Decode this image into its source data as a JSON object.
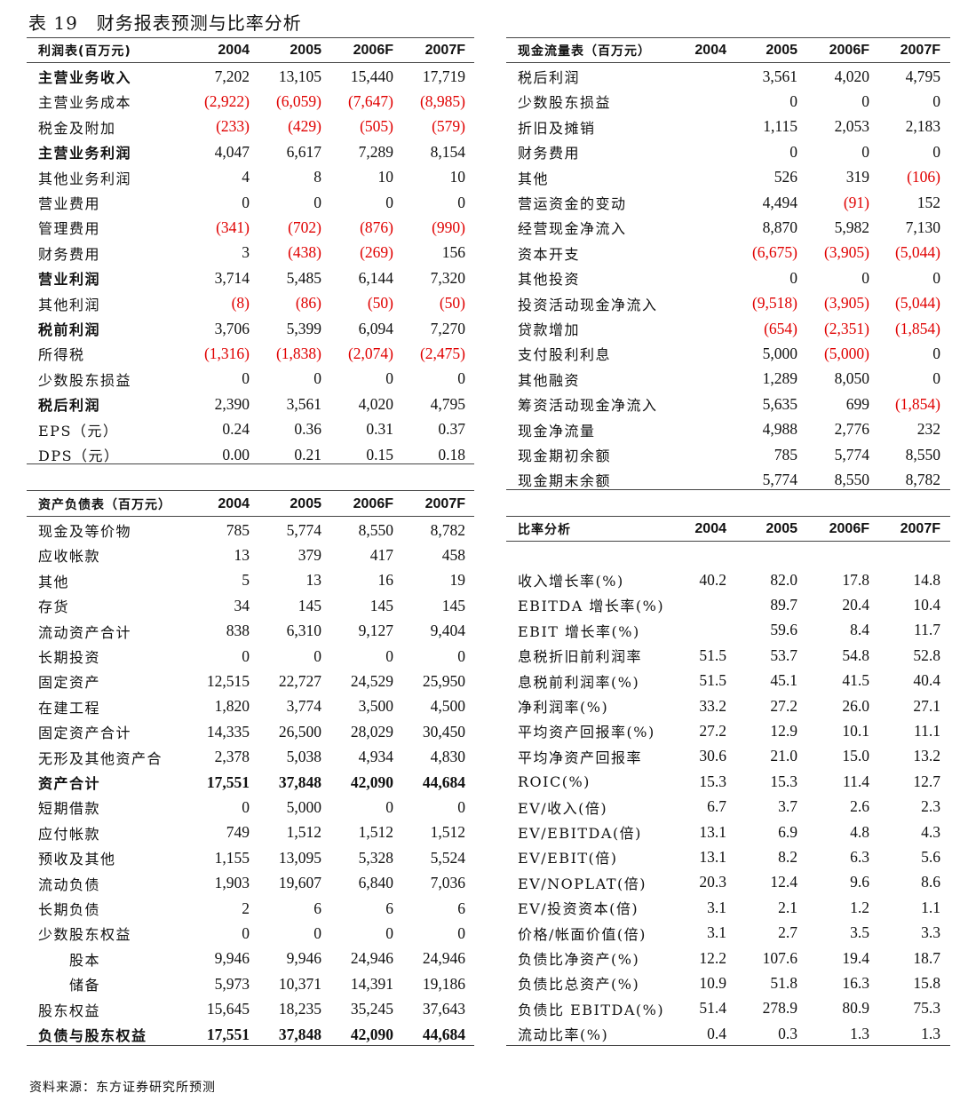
{
  "title": "表 19　财务报表预测与比率分析",
  "source": "资料来源：东方证券研究所预测",
  "colors": {
    "negative": "#e00000",
    "text": "#111111",
    "rule": "#444444"
  },
  "tables": {
    "income": {
      "header": [
        "利润表(百万元)",
        "2004",
        "2005",
        "2006F",
        "2007F"
      ],
      "rows": [
        {
          "label": "主营业务收入",
          "bold": true,
          "values": [
            "7,202",
            "13,105",
            "15,440",
            "17,719"
          ]
        },
        {
          "label": "主营业务成本",
          "values": [
            "(2,922)",
            "(6,059)",
            "(7,647)",
            "(8,985)"
          ]
        },
        {
          "label": "税金及附加",
          "values": [
            "(233)",
            "(429)",
            "(505)",
            "(579)"
          ]
        },
        {
          "label": "主营业务利润",
          "bold": true,
          "values": [
            "4,047",
            "6,617",
            "7,289",
            "8,154"
          ]
        },
        {
          "label": "其他业务利润",
          "values": [
            "4",
            "8",
            "10",
            "10"
          ]
        },
        {
          "label": "营业费用",
          "values": [
            "0",
            "0",
            "0",
            "0"
          ]
        },
        {
          "label": "管理费用",
          "values": [
            "(341)",
            "(702)",
            "(876)",
            "(990)"
          ]
        },
        {
          "label": "财务费用",
          "values": [
            "3",
            "(438)",
            "(269)",
            "156"
          ]
        },
        {
          "label": "营业利润",
          "bold": true,
          "values": [
            "3,714",
            "5,485",
            "6,144",
            "7,320"
          ]
        },
        {
          "label": "其他利润",
          "values": [
            "(8)",
            "(86)",
            "(50)",
            "(50)"
          ]
        },
        {
          "label": "税前利润",
          "bold": true,
          "values": [
            "3,706",
            "5,399",
            "6,094",
            "7,270"
          ]
        },
        {
          "label": "所得税",
          "values": [
            "(1,316)",
            "(1,838)",
            "(2,074)",
            "(2,475)"
          ]
        },
        {
          "label": "少数股东损益",
          "values": [
            "0",
            "0",
            "0",
            "0"
          ]
        },
        {
          "label": "税后利润",
          "bold": true,
          "values": [
            "2,390",
            "3,561",
            "4,020",
            "4,795"
          ]
        },
        {
          "label": "EPS（元）",
          "values": [
            "0.24",
            "0.36",
            "0.31",
            "0.37"
          ]
        },
        {
          "label": "DPS（元）",
          "values": [
            "0.00",
            "0.21",
            "0.15",
            "0.18"
          ]
        }
      ]
    },
    "balance": {
      "header": [
        "资产负债表（百万元）",
        "2004",
        "2005",
        "2006F",
        "2007F"
      ],
      "rows": [
        {
          "label": "现金及等价物",
          "values": [
            "785",
            "5,774",
            "8,550",
            "8,782"
          ]
        },
        {
          "label": "应收帐款",
          "values": [
            "13",
            "379",
            "417",
            "458"
          ]
        },
        {
          "label": "其他",
          "values": [
            "5",
            "13",
            "16",
            "19"
          ]
        },
        {
          "label": "存货",
          "values": [
            "34",
            "145",
            "145",
            "145"
          ]
        },
        {
          "label": "流动资产合计",
          "values": [
            "838",
            "6,310",
            "9,127",
            "9,404"
          ]
        },
        {
          "label": "长期投资",
          "values": [
            "0",
            "0",
            "0",
            "0"
          ]
        },
        {
          "label": "固定资产",
          "values": [
            "12,515",
            "22,727",
            "24,529",
            "25,950"
          ]
        },
        {
          "label": "在建工程",
          "values": [
            "1,820",
            "3,774",
            "3,500",
            "4,500"
          ]
        },
        {
          "label": "固定资产合计",
          "values": [
            "14,335",
            "26,500",
            "28,029",
            "30,450"
          ]
        },
        {
          "label": "无形及其他资产合",
          "values": [
            "2,378",
            "5,038",
            "4,934",
            "4,830"
          ]
        },
        {
          "label": "资产合计",
          "bold": true,
          "boldValues": true,
          "values": [
            "17,551",
            "37,848",
            "42,090",
            "44,684"
          ]
        },
        {
          "label": "短期借款",
          "values": [
            "0",
            "5,000",
            "0",
            "0"
          ]
        },
        {
          "label": "应付帐款",
          "values": [
            "749",
            "1,512",
            "1,512",
            "1,512"
          ]
        },
        {
          "label": "预收及其他",
          "values": [
            "1,155",
            "13,095",
            "5,328",
            "5,524"
          ]
        },
        {
          "label": "流动负债",
          "values": [
            "1,903",
            "19,607",
            "6,840",
            "7,036"
          ]
        },
        {
          "label": "长期负债",
          "values": [
            "2",
            "6",
            "6",
            "6"
          ]
        },
        {
          "label": "少数股东权益",
          "values": [
            "0",
            "0",
            "0",
            "0"
          ]
        },
        {
          "label": "股本",
          "indent": true,
          "values": [
            "9,946",
            "9,946",
            "24,946",
            "24,946"
          ]
        },
        {
          "label": "储备",
          "indent": true,
          "values": [
            "5,973",
            "10,371",
            "14,391",
            "19,186"
          ]
        },
        {
          "label": "股东权益",
          "values": [
            "15,645",
            "18,235",
            "35,245",
            "37,643"
          ]
        },
        {
          "label": "负债与股东权益",
          "bold": true,
          "boldValues": true,
          "values": [
            "17,551",
            "37,848",
            "42,090",
            "44,684"
          ]
        }
      ]
    },
    "cashflow": {
      "header": [
        "现金流量表（百万元）",
        "2004",
        "2005",
        "2006F",
        "2007F"
      ],
      "rows": [
        {
          "label": "税后利润",
          "values": [
            "",
            "3,561",
            "4,020",
            "4,795"
          ]
        },
        {
          "label": "少数股东损益",
          "values": [
            "",
            "0",
            "0",
            "0"
          ]
        },
        {
          "label": "折旧及摊销",
          "values": [
            "",
            "1,115",
            "2,053",
            "2,183"
          ]
        },
        {
          "label": "财务费用",
          "values": [
            "",
            "0",
            "0",
            "0"
          ]
        },
        {
          "label": "其他",
          "values": [
            "",
            "526",
            "319",
            "(106)"
          ]
        },
        {
          "label": "营运资金的变动",
          "values": [
            "",
            "4,494",
            "(91)",
            "152"
          ]
        },
        {
          "label": "经营现金净流入",
          "values": [
            "",
            "8,870",
            "5,982",
            "7,130"
          ]
        },
        {
          "label": "资本开支",
          "values": [
            "",
            "(6,675)",
            "(3,905)",
            "(5,044)"
          ]
        },
        {
          "label": "其他投资",
          "values": [
            "",
            "0",
            "0",
            "0"
          ]
        },
        {
          "label": "投资活动现金净流入",
          "values": [
            "",
            "(9,518)",
            "(3,905)",
            "(5,044)"
          ]
        },
        {
          "label": "贷款增加",
          "values": [
            "",
            "(654)",
            "(2,351)",
            "(1,854)"
          ]
        },
        {
          "label": "支付股利利息",
          "values": [
            "",
            "5,000",
            "(5,000)",
            "0"
          ]
        },
        {
          "label": "其他融资",
          "values": [
            "",
            "1,289",
            "8,050",
            "0"
          ]
        },
        {
          "label": "筹资活动现金净流入",
          "values": [
            "",
            "5,635",
            "699",
            "(1,854)"
          ]
        },
        {
          "label": "现金净流量",
          "values": [
            "",
            "4,988",
            "2,776",
            "232"
          ]
        },
        {
          "label": "现金期初余额",
          "values": [
            "",
            "785",
            "5,774",
            "8,550"
          ]
        },
        {
          "label": "现金期末余额",
          "values": [
            "",
            "5,774",
            "8,550",
            "8,782"
          ]
        }
      ]
    },
    "ratio": {
      "header": [
        "比率分析",
        "2004",
        "2005",
        "2006F",
        "2007F"
      ],
      "rows": [
        {
          "label": "收入增长率(%)",
          "values": [
            "40.2",
            "82.0",
            "17.8",
            "14.8"
          ]
        },
        {
          "label": "EBITDA 增长率(%)",
          "values": [
            "",
            "89.7",
            "20.4",
            "10.4"
          ]
        },
        {
          "label": "EBIT 增长率(%)",
          "values": [
            "",
            "59.6",
            "8.4",
            "11.7"
          ]
        },
        {
          "label": "息税折旧前利润率",
          "values": [
            "51.5",
            "53.7",
            "54.8",
            "52.8"
          ]
        },
        {
          "label": "息税前利润率(%)",
          "values": [
            "51.5",
            "45.1",
            "41.5",
            "40.4"
          ]
        },
        {
          "label": "净利润率(%)",
          "values": [
            "33.2",
            "27.2",
            "26.0",
            "27.1"
          ]
        },
        {
          "label": "平均资产回报率(%)",
          "values": [
            "27.2",
            "12.9",
            "10.1",
            "11.1"
          ]
        },
        {
          "label": "平均净资产回报率",
          "values": [
            "30.6",
            "21.0",
            "15.0",
            "13.2"
          ]
        },
        {
          "label": "ROIC(%)",
          "values": [
            "15.3",
            "15.3",
            "11.4",
            "12.7"
          ]
        },
        {
          "label": "EV/收入(倍)",
          "values": [
            "6.7",
            "3.7",
            "2.6",
            "2.3"
          ]
        },
        {
          "label": "EV/EBITDA(倍)",
          "values": [
            "13.1",
            "6.9",
            "4.8",
            "4.3"
          ]
        },
        {
          "label": "EV/EBIT(倍)",
          "values": [
            "13.1",
            "8.2",
            "6.3",
            "5.6"
          ]
        },
        {
          "label": "EV/NOPLAT(倍)",
          "values": [
            "20.3",
            "12.4",
            "9.6",
            "8.6"
          ]
        },
        {
          "label": "EV/投资资本(倍)",
          "values": [
            "3.1",
            "2.1",
            "1.2",
            "1.1"
          ]
        },
        {
          "label": "价格/帐面价值(倍)",
          "values": [
            "3.1",
            "2.7",
            "3.5",
            "3.3"
          ]
        },
        {
          "label": "负债比净资产(%)",
          "values": [
            "12.2",
            "107.6",
            "19.4",
            "18.7"
          ]
        },
        {
          "label": "负债比总资产(%)",
          "values": [
            "10.9",
            "51.8",
            "16.3",
            "15.8"
          ]
        },
        {
          "label": "负债比 EBITDA(%)",
          "values": [
            "51.4",
            "278.9",
            "80.9",
            "75.3"
          ]
        },
        {
          "label": "流动比率(%)",
          "values": [
            "0.4",
            "0.3",
            "1.3",
            "1.3"
          ]
        }
      ]
    }
  }
}
